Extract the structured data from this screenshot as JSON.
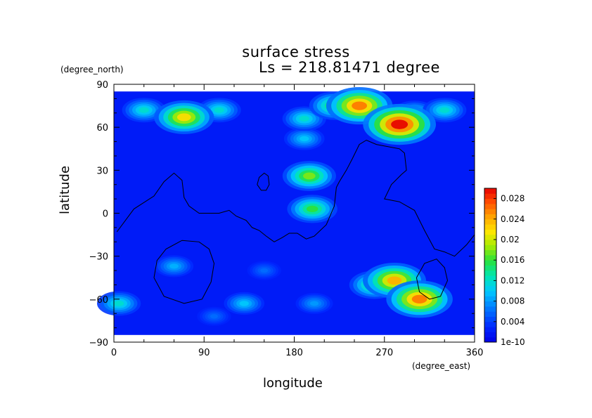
{
  "chart_data": {
    "type": "heatmap",
    "title": "surface stress",
    "subtitle": "Ls = 218.81471 degree",
    "xlabel": "longitude",
    "ylabel": "latitude",
    "x_units": "(degree_east)",
    "y_units": "(degree_north)",
    "xlim": [
      0,
      360
    ],
    "ylim": [
      -90,
      90
    ],
    "x_ticks": [
      "0",
      "90",
      "180",
      "270",
      "360"
    ],
    "y_ticks": [
      "90",
      "60",
      "30",
      "0",
      "−30",
      "−60",
      "−90"
    ],
    "x_tick_values": [
      0,
      90,
      180,
      270,
      360
    ],
    "y_tick_values": [
      90,
      60,
      30,
      0,
      -30,
      -60,
      -90
    ],
    "data_extent_lat": [
      -85,
      85
    ],
    "background_value": 0.002,
    "hotspots": [
      {
        "lon": 70,
        "lat": 67,
        "value": 0.022
      },
      {
        "lon": 30,
        "lat": 72,
        "value": 0.012
      },
      {
        "lon": 105,
        "lat": 72,
        "value": 0.012
      },
      {
        "lon": 245,
        "lat": 75,
        "value": 0.026
      },
      {
        "lon": 220,
        "lat": 75,
        "value": 0.016
      },
      {
        "lon": 285,
        "lat": 62,
        "value": 0.03
      },
      {
        "lon": 300,
        "lat": 70,
        "value": 0.012
      },
      {
        "lon": 330,
        "lat": 72,
        "value": 0.012
      },
      {
        "lon": 190,
        "lat": 66,
        "value": 0.012
      },
      {
        "lon": 190,
        "lat": 52,
        "value": 0.01
      },
      {
        "lon": 195,
        "lat": 26,
        "value": 0.018
      },
      {
        "lon": 198,
        "lat": 3,
        "value": 0.016
      },
      {
        "lon": 280,
        "lat": -47,
        "value": 0.024
      },
      {
        "lon": 305,
        "lat": -60,
        "value": 0.026
      },
      {
        "lon": 260,
        "lat": -50,
        "value": 0.016
      },
      {
        "lon": 60,
        "lat": -37,
        "value": 0.009
      },
      {
        "lon": 130,
        "lat": -63,
        "value": 0.01
      },
      {
        "lon": 5,
        "lat": -63,
        "value": 0.012
      },
      {
        "lon": 200,
        "lat": -63,
        "value": 0.008
      },
      {
        "lon": 150,
        "lat": -40,
        "value": 0.006
      },
      {
        "lon": 100,
        "lat": -72,
        "value": 0.006
      }
    ],
    "contours": [
      [
        [
          3,
          -13
        ],
        [
          20,
          3
        ],
        [
          40,
          12
        ],
        [
          50,
          22
        ],
        [
          60,
          28
        ],
        [
          68,
          23
        ],
        [
          70,
          11
        ],
        [
          75,
          5
        ],
        [
          85,
          0
        ],
        [
          105,
          0
        ],
        [
          115,
          2
        ],
        [
          122,
          -2
        ],
        [
          132,
          -5
        ],
        [
          138,
          -10
        ],
        [
          145,
          -12
        ],
        [
          152,
          -16
        ],
        [
          160,
          -20
        ],
        [
          168,
          -17
        ],
        [
          175,
          -14
        ],
        [
          183,
          -14
        ],
        [
          192,
          -18
        ],
        [
          200,
          -16
        ],
        [
          212,
          -8
        ],
        [
          220,
          5
        ],
        [
          222,
          18
        ],
        [
          225,
          22
        ],
        [
          232,
          30
        ],
        [
          238,
          38
        ],
        [
          245,
          48
        ],
        [
          252,
          51
        ],
        [
          262,
          48
        ],
        [
          285,
          45
        ],
        [
          290,
          42
        ],
        [
          292,
          30
        ],
        [
          287,
          27
        ],
        [
          277,
          20
        ],
        [
          270,
          10
        ],
        [
          285,
          8
        ],
        [
          300,
          2
        ],
        [
          310,
          -12
        ],
        [
          320,
          -25
        ],
        [
          330,
          -27
        ],
        [
          340,
          -30
        ],
        [
          352,
          -22
        ],
        [
          360,
          -15
        ]
      ],
      [
        [
          143,
          20
        ],
        [
          145,
          25
        ],
        [
          150,
          28
        ],
        [
          154,
          26
        ],
        [
          155,
          20
        ],
        [
          152,
          16
        ],
        [
          147,
          16
        ],
        [
          143,
          20
        ]
      ],
      [
        [
          40,
          -45
        ],
        [
          43,
          -33
        ],
        [
          52,
          -25
        ],
        [
          68,
          -19
        ],
        [
          85,
          -20
        ],
        [
          95,
          -25
        ],
        [
          100,
          -35
        ],
        [
          97,
          -48
        ],
        [
          88,
          -60
        ],
        [
          70,
          -63
        ],
        [
          50,
          -58
        ],
        [
          40,
          -45
        ]
      ],
      [
        [
          302,
          -45
        ],
        [
          310,
          -35
        ],
        [
          322,
          -32
        ],
        [
          330,
          -38
        ],
        [
          333,
          -47
        ],
        [
          326,
          -58
        ],
        [
          315,
          -60
        ],
        [
          305,
          -55
        ],
        [
          302,
          -45
        ]
      ]
    ],
    "colorbar": {
      "min": 0,
      "max": 0.03,
      "tick_labels": [
        "1e-10",
        "0.004",
        "0.008",
        "0.012",
        "0.016",
        "0.02",
        "0.024",
        "0.028"
      ],
      "tick_values": [
        0,
        0.004,
        0.008,
        0.012,
        0.016,
        0.02,
        0.024,
        0.028
      ]
    }
  }
}
